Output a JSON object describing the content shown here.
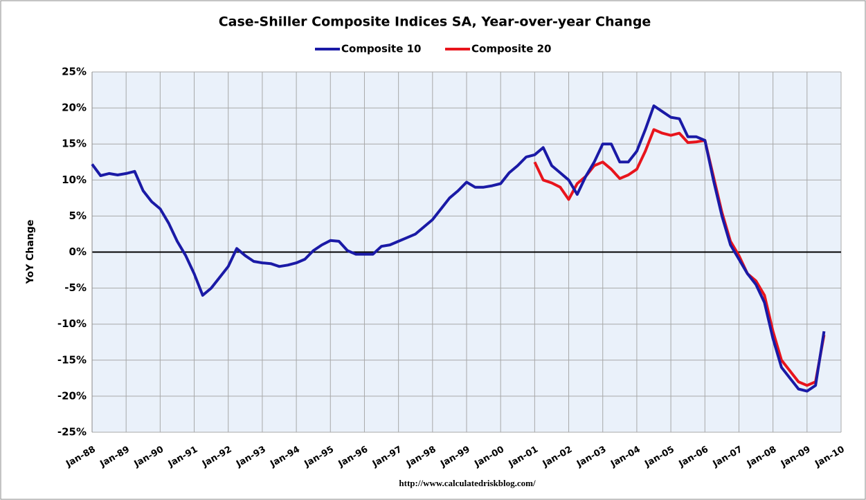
{
  "chart_data": {
    "type": "line",
    "title": "Case-Shiller Composite Indices SA, Year-over-year Change",
    "y_label": "YoY Change",
    "source": "http://www.calculatedriskblog.com/",
    "categories": [
      "Jan-88",
      null,
      null,
      null,
      "Jan-89",
      null,
      null,
      null,
      "Jan-90",
      null,
      null,
      null,
      "Jan-91",
      null,
      null,
      null,
      "Jan-92",
      null,
      null,
      null,
      "Jan-93",
      null,
      null,
      null,
      "Jan-94",
      null,
      null,
      null,
      "Jan-95",
      null,
      null,
      null,
      "Jan-96",
      null,
      null,
      null,
      "Jan-97",
      null,
      null,
      null,
      "Jan-98",
      null,
      null,
      null,
      "Jan-99",
      null,
      null,
      null,
      "Jan-00",
      null,
      null,
      null,
      "Jan-01",
      null,
      null,
      null,
      "Jan-02",
      null,
      null,
      null,
      "Jan-03",
      null,
      null,
      null,
      "Jan-04",
      null,
      null,
      null,
      "Jan-05",
      null,
      null,
      null,
      "Jan-06",
      null,
      null,
      null,
      "Jan-07",
      null,
      null,
      null,
      "Jan-08",
      null,
      null,
      null,
      "Jan-09",
      null,
      null,
      null,
      "Jan-10"
    ],
    "series": [
      {
        "name": "Composite 10",
        "color": "#1a1aa6",
        "values": [
          12.2,
          10.6,
          10.9,
          10.7,
          10.9,
          11.2,
          8.5,
          7.0,
          6.0,
          4.0,
          1.5,
          -0.5,
          -3.0,
          -6.0,
          -5.0,
          -3.5,
          -2.0,
          0.5,
          -0.5,
          -1.3,
          -1.5,
          -1.6,
          -2.0,
          -1.8,
          -1.5,
          -1.0,
          0.2,
          1.0,
          1.6,
          1.5,
          0.2,
          -0.3,
          -0.3,
          -0.3,
          0.8,
          1.0,
          1.5,
          2.0,
          2.5,
          3.5,
          4.5,
          6.0,
          7.5,
          8.5,
          9.7,
          9.0,
          9.0,
          9.2,
          9.5,
          11.0,
          12.0,
          13.2,
          13.5,
          14.5,
          12.0,
          11.0,
          10.0,
          8.0,
          10.5,
          12.5,
          15.0,
          15.0,
          12.5,
          12.5,
          14.0,
          17.0,
          20.3,
          19.5,
          18.7,
          18.5,
          16.0,
          16.0,
          15.5,
          10.0,
          5.0,
          1.0,
          -1.0,
          -3.0,
          -4.5,
          -7.0,
          -12.0,
          -16.0,
          -17.5,
          -19.0,
          -19.3,
          -18.5,
          -11.0,
          null,
          null
        ]
      },
      {
        "name": "Composite 20",
        "color": "#e8141c",
        "values": [
          null,
          null,
          null,
          null,
          null,
          null,
          null,
          null,
          null,
          null,
          null,
          null,
          null,
          null,
          null,
          null,
          null,
          null,
          null,
          null,
          null,
          null,
          null,
          null,
          null,
          null,
          null,
          null,
          null,
          null,
          null,
          null,
          null,
          null,
          null,
          null,
          null,
          null,
          null,
          null,
          null,
          null,
          null,
          null,
          null,
          null,
          null,
          null,
          null,
          null,
          null,
          null,
          12.5,
          10.0,
          9.6,
          9.0,
          7.3,
          9.5,
          10.5,
          12.0,
          12.5,
          11.5,
          10.2,
          10.7,
          11.5,
          14.0,
          17.0,
          16.5,
          16.2,
          16.5,
          15.2,
          15.3,
          15.5,
          10.5,
          5.5,
          1.5,
          -0.5,
          -3.0,
          -4.0,
          -6.0,
          -11.0,
          -15.0,
          -16.5,
          -18.0,
          -18.5,
          -18.0,
          -11.5,
          null,
          null
        ]
      }
    ],
    "ylim": [
      -25,
      25
    ],
    "yticks": [
      {
        "value": -25,
        "label": "-25%"
      },
      {
        "value": -20,
        "label": "-20%"
      },
      {
        "value": -15,
        "label": "-15%"
      },
      {
        "value": -10,
        "label": "-10%"
      },
      {
        "value": -5,
        "label": "-5%"
      },
      {
        "value": 0,
        "label": "0%"
      },
      {
        "value": 5,
        "label": "5%"
      },
      {
        "value": 10,
        "label": "10%"
      },
      {
        "value": 15,
        "label": "15%"
      },
      {
        "value": 20,
        "label": "20%"
      },
      {
        "value": 25,
        "label": "25%"
      }
    ],
    "grid": true
  }
}
